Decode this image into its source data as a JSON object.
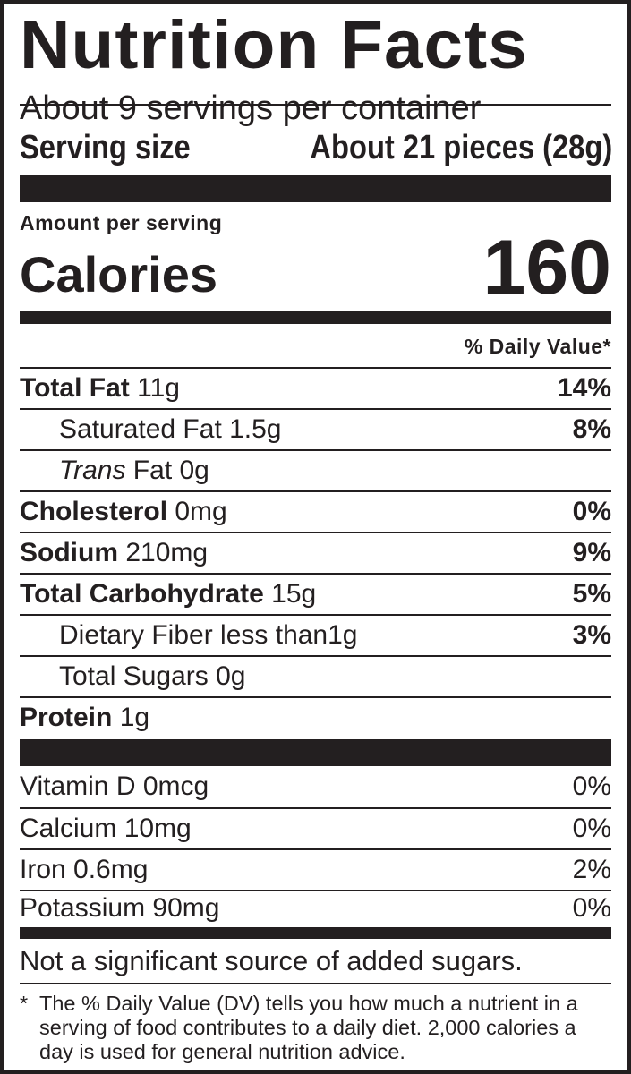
{
  "title": "Nutrition Facts",
  "servings_per_container": "About 9  servings per container",
  "serving_size": {
    "label": "Serving size",
    "value": "About 21 pieces (28g)"
  },
  "amount_per_serving": "Amount per serving",
  "calories": {
    "label": "Calories",
    "value": "160"
  },
  "daily_value_header": "% Daily Value*",
  "nutrients": [
    {
      "name": "Total Fat",
      "amount": " 11g",
      "dv": "14%",
      "bold": true,
      "indent": false
    },
    {
      "name": "Saturated Fat 1.5g",
      "amount": "",
      "dv": "8%",
      "bold": false,
      "indent": true
    },
    {
      "name": "Trans",
      "amount": " Fat 0g",
      "dv": "",
      "bold": false,
      "indent": true,
      "italic": true
    },
    {
      "name": "Cholesterol",
      "amount": " 0mg",
      "dv": "0%",
      "bold": true,
      "indent": false
    },
    {
      "name": "Sodium",
      "amount": " 210mg",
      "dv": "9%",
      "bold": true,
      "indent": false
    },
    {
      "name": "Total Carbohydrate",
      "amount": " 15g",
      "dv": "5%",
      "bold": true,
      "indent": false
    },
    {
      "name": "Dietary Fiber less than1g",
      "amount": "",
      "dv": "3%",
      "bold": false,
      "indent": true
    },
    {
      "name": "Total Sugars 0g",
      "amount": "",
      "dv": "",
      "bold": false,
      "indent": true
    },
    {
      "name": "Protein",
      "amount": " 1g",
      "dv": "",
      "bold": true,
      "indent": false
    }
  ],
  "vitamins": [
    {
      "name": "Vitamin D 0mcg",
      "dv": "0%"
    },
    {
      "name": "Calcium 10mg",
      "dv": "0%"
    },
    {
      "name": "Iron 0.6mg",
      "dv": "2%"
    },
    {
      "name": "Potassium 90mg",
      "dv": "0%"
    }
  ],
  "added_sugars_note": "Not a significant source of added sugars.",
  "footnote": {
    "star": "*",
    "text": "The % Daily Value (DV) tells you how much a nutrient in a serving of food contributes to a daily diet. 2,000 calories a day is used for general nutrition advice."
  },
  "colors": {
    "ink": "#231f20",
    "background": "#ffffff"
  }
}
